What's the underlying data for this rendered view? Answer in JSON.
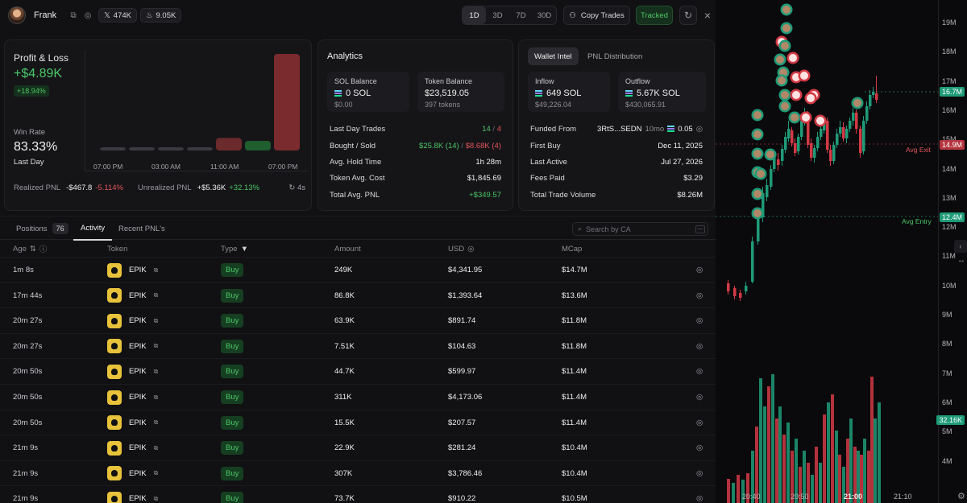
{
  "header": {
    "name": "Frank",
    "x_followers": "474K",
    "followers2": "9.05K",
    "timeframes": [
      "1D",
      "3D",
      "7D",
      "30D"
    ],
    "active_timeframe": "1D",
    "copy_trades": "Copy Trades",
    "tracked": "Tracked"
  },
  "pnl": {
    "title": "Profit & Loss",
    "value": "+$4.89K",
    "pct": "+18.94%",
    "win_rate_label": "Win Rate",
    "win_rate": "83.33%",
    "period": "Last Day",
    "time_labels": [
      "07:00 PM",
      "03:00 AM",
      "11:00 AM",
      "07:00 PM"
    ],
    "realized_label": "Realized PNL",
    "realized_value": "-$467.8",
    "realized_pct": "-5.114%",
    "unrealized_label": "Unrealized PNL",
    "unrealized_value": "+$5.36K",
    "unrealized_pct": "+32.13%",
    "refresh": "4s"
  },
  "pnl_bars": [
    {
      "value": 0,
      "color": "#3a3a40"
    },
    {
      "value": 0,
      "color": "#3a3a40"
    },
    {
      "value": 0,
      "color": "#3a3a40"
    },
    {
      "value": 0,
      "color": "#3a3a40"
    },
    {
      "value": -0.13,
      "color": "#6b2a2c"
    },
    {
      "value": 0.1,
      "color": "#1f5e2e"
    },
    {
      "value": 1.0,
      "color": "#7a2b2d"
    }
  ],
  "analytics": {
    "title": "Analytics",
    "sol_balance_label": "SOL Balance",
    "sol_balance": "0 SOL",
    "sol_balance_usd": "$0.00",
    "token_balance_label": "Token Balance",
    "token_balance": "$23,519.05",
    "token_balance_sub": "397 tokens",
    "last_day_trades_label": "Last Day Trades",
    "trades_buy": "14",
    "trades_sep": "/",
    "trades_sell": "4",
    "bought_sold_label": "Bought / Sold",
    "bought": "$25.8K (14)",
    "sold": "$8.68K (4)",
    "hold_label": "Avg. Hold Time",
    "hold": "1h 28m",
    "cost_label": "Token Avg. Cost",
    "cost": "$1,845.69",
    "total_pnl_label": "Total Avg. PNL",
    "total_pnl": "+$349.57"
  },
  "intel": {
    "tab_active": "Wallet Intel",
    "tab_other": "PNL Distribution",
    "inflow_label": "Inflow",
    "inflow": "649 SOL",
    "inflow_usd": "$49,226.04",
    "outflow_label": "Outflow",
    "outflow": "5.67K SOL",
    "outflow_usd": "$430,065.91",
    "funded_label": "Funded From",
    "funded_addr": "3RtS...SEDN",
    "funded_age": "10mo",
    "funded_amt": "0.05",
    "first_buy_label": "First Buy",
    "first_buy": "Dec 11, 2025",
    "last_active_label": "Last Active",
    "last_active": "Jul 27, 2026",
    "fees_label": "Fees Paid",
    "fees": "$3.29",
    "volume_label": "Total Trade Volume",
    "volume": "$8.26M"
  },
  "tabs": {
    "positions": "Positions",
    "positions_count": "76",
    "activity": "Activity",
    "recent": "Recent PNL's",
    "search_placeholder": "Search by CA"
  },
  "columns": {
    "age": "Age",
    "token": "Token",
    "type": "Type",
    "amount": "Amount",
    "usd": "USD",
    "mcap": "MCap"
  },
  "rows": [
    {
      "age": "1m 8s",
      "token": "EPIK",
      "type": "Buy",
      "amount": "249K",
      "usd": "$4,341.95",
      "mcap": "$14.7M"
    },
    {
      "age": "17m 44s",
      "token": "EPIK",
      "type": "Buy",
      "amount": "86.8K",
      "usd": "$1,393.64",
      "mcap": "$13.6M"
    },
    {
      "age": "20m 27s",
      "token": "EPIK",
      "type": "Buy",
      "amount": "63.9K",
      "usd": "$891.74",
      "mcap": "$11.8M"
    },
    {
      "age": "20m 27s",
      "token": "EPIK",
      "type": "Buy",
      "amount": "7.51K",
      "usd": "$104.63",
      "mcap": "$11.8M"
    },
    {
      "age": "20m 50s",
      "token": "EPIK",
      "type": "Buy",
      "amount": "44.7K",
      "usd": "$599.97",
      "mcap": "$11.4M"
    },
    {
      "age": "20m 50s",
      "token": "EPIK",
      "type": "Buy",
      "amount": "311K",
      "usd": "$4,173.06",
      "mcap": "$11.4M"
    },
    {
      "age": "20m 50s",
      "token": "EPIK",
      "type": "Buy",
      "amount": "15.5K",
      "usd": "$207.57",
      "mcap": "$11.4M"
    },
    {
      "age": "21m 9s",
      "token": "EPIK",
      "type": "Buy",
      "amount": "22.9K",
      "usd": "$281.24",
      "mcap": "$10.4M"
    },
    {
      "age": "21m 9s",
      "token": "EPIK",
      "type": "Buy",
      "amount": "307K",
      "usd": "$3,786.46",
      "mcap": "$10.4M"
    },
    {
      "age": "21m 9s",
      "token": "EPIK",
      "type": "Buy",
      "amount": "73.7K",
      "usd": "$910.22",
      "mcap": "$10.5M"
    }
  ],
  "chart": {
    "y_ticks": [
      "19M",
      "18M",
      "17M",
      "16M",
      "15M",
      "14M",
      "13M",
      "12M",
      "11M",
      "10M",
      "9M",
      "8M",
      "7M",
      "6M",
      "5M",
      "4M"
    ],
    "x_ticks": [
      "20:40",
      "20:50",
      "21:00",
      "21:10"
    ],
    "last_price_tag": "16.7M",
    "avg_exit_tag": "14.9M",
    "avg_exit_label": "Avg Exit",
    "avg_entry_tag": "12.4M",
    "avg_entry_label": "Avg Entry",
    "volume_tag": "32.16K",
    "colors": {
      "up": "#1f9b78",
      "down": "#d23a45"
    }
  }
}
